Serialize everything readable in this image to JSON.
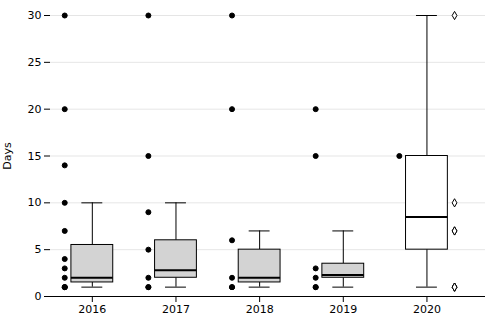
{
  "chart_data": {
    "type": "box",
    "categories": [
      "2016",
      "2017",
      "2018",
      "2019",
      "2020"
    ],
    "boxes": [
      {
        "whislo": 1.0,
        "q1": 1.5,
        "med": 2.0,
        "q3": 5.5,
        "whishi": 10.0
      },
      {
        "whislo": 1.0,
        "q1": 2.0,
        "med": 2.8,
        "q3": 6.0,
        "whishi": 10.0
      },
      {
        "whislo": 1.0,
        "q1": 1.5,
        "med": 2.0,
        "q3": 5.0,
        "whishi": 7.0
      },
      {
        "whislo": 1.0,
        "q1": 2.0,
        "med": 2.3,
        "q3": 3.5,
        "whishi": 7.0
      },
      {
        "whislo": 1.0,
        "q1": 5.0,
        "med": 8.5,
        "q3": 15.0,
        "whishi": 30.0
      }
    ],
    "colors": [
      "#d3d3d3",
      "#d3d3d3",
      "#d3d3d3",
      "#d3d3d3",
      "#ffffff"
    ],
    "fliers": [
      {
        "marker": "circle",
        "color": "#000000",
        "values": [
          [
            14,
            20,
            30,
            1,
            1,
            1,
            2,
            3,
            4,
            7,
            10
          ],
          [
            15,
            30,
            1,
            1,
            2,
            5,
            9
          ],
          [
            20,
            30,
            1,
            1,
            2,
            6
          ],
          [
            20,
            15,
            1,
            1,
            2,
            3
          ],
          [
            15
          ]
        ]
      },
      {
        "marker": "diamond",
        "color": "#ffffff",
        "values": [
          [],
          [],
          [],
          [],
          [
            30,
            10,
            7,
            7,
            1,
            1,
            1
          ]
        ]
      }
    ],
    "ylabel": "Days",
    "ylim": [
      0,
      30
    ],
    "yticks": [
      0,
      5,
      10,
      15,
      20,
      25,
      30
    ],
    "grid": true
  }
}
